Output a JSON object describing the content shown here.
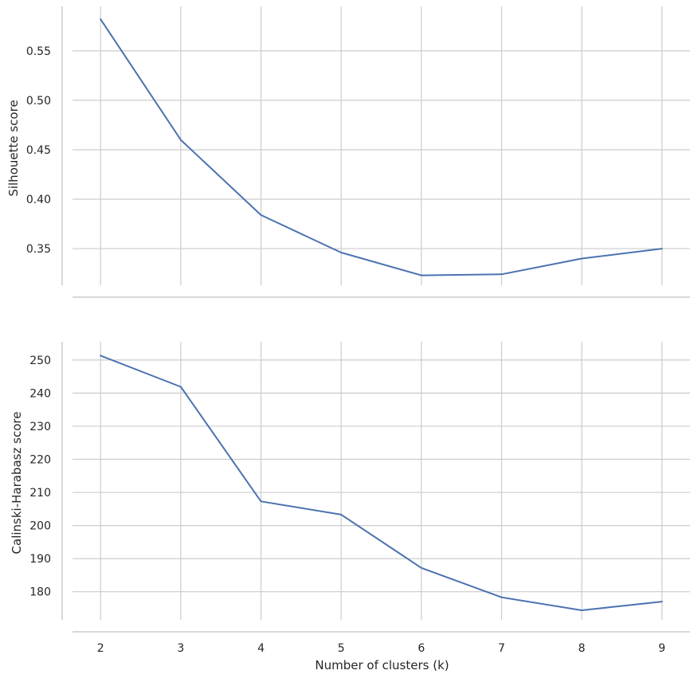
{
  "chart_data": [
    {
      "type": "line",
      "title": "",
      "xlabel": "",
      "ylabel": "Silhouette score",
      "x": [
        2,
        3,
        4,
        5,
        6,
        7,
        8,
        9
      ],
      "series": [
        {
          "values": [
            0.582,
            0.46,
            0.384,
            0.346,
            0.323,
            0.324,
            0.34,
            0.35
          ]
        }
      ],
      "xlim": [
        1.65,
        9.35
      ],
      "ylim": [
        0.313,
        0.595
      ],
      "yticks": [
        0.35,
        0.4,
        0.45,
        0.5,
        0.55
      ],
      "ytick_labels": [
        "0.35",
        "0.40",
        "0.45",
        "0.50",
        "0.55"
      ],
      "xticks": [
        2,
        3,
        4,
        5,
        6,
        7,
        8,
        9
      ],
      "xtick_labels": [],
      "grid": true,
      "legend": "none",
      "line_color": "#4c72b0",
      "grid_color": "#cccccc",
      "spine_color": "#cccccc"
    },
    {
      "type": "line",
      "title": "",
      "xlabel": "Number of clusters (k)",
      "ylabel": "Calinski-Harabasz score",
      "x": [
        2,
        3,
        4,
        5,
        6,
        7,
        8,
        9
      ],
      "series": [
        {
          "values": [
            251.3,
            241.9,
            207.3,
            203.3,
            187.2,
            178.3,
            174.4,
            177.0
          ]
        }
      ],
      "xlim": [
        1.65,
        9.35
      ],
      "ylim": [
        171.5,
        255.5
      ],
      "yticks": [
        180,
        190,
        200,
        210,
        220,
        230,
        240,
        250
      ],
      "ytick_labels": [
        "180",
        "190",
        "200",
        "210",
        "220",
        "230",
        "240",
        "250"
      ],
      "xticks": [
        2,
        3,
        4,
        5,
        6,
        7,
        8,
        9
      ],
      "xtick_labels": [
        "2",
        "3",
        "4",
        "5",
        "6",
        "7",
        "8",
        "9"
      ],
      "grid": true,
      "legend": "none",
      "line_color": "#4c72b0",
      "grid_color": "#cccccc",
      "spine_color": "#cccccc"
    }
  ]
}
